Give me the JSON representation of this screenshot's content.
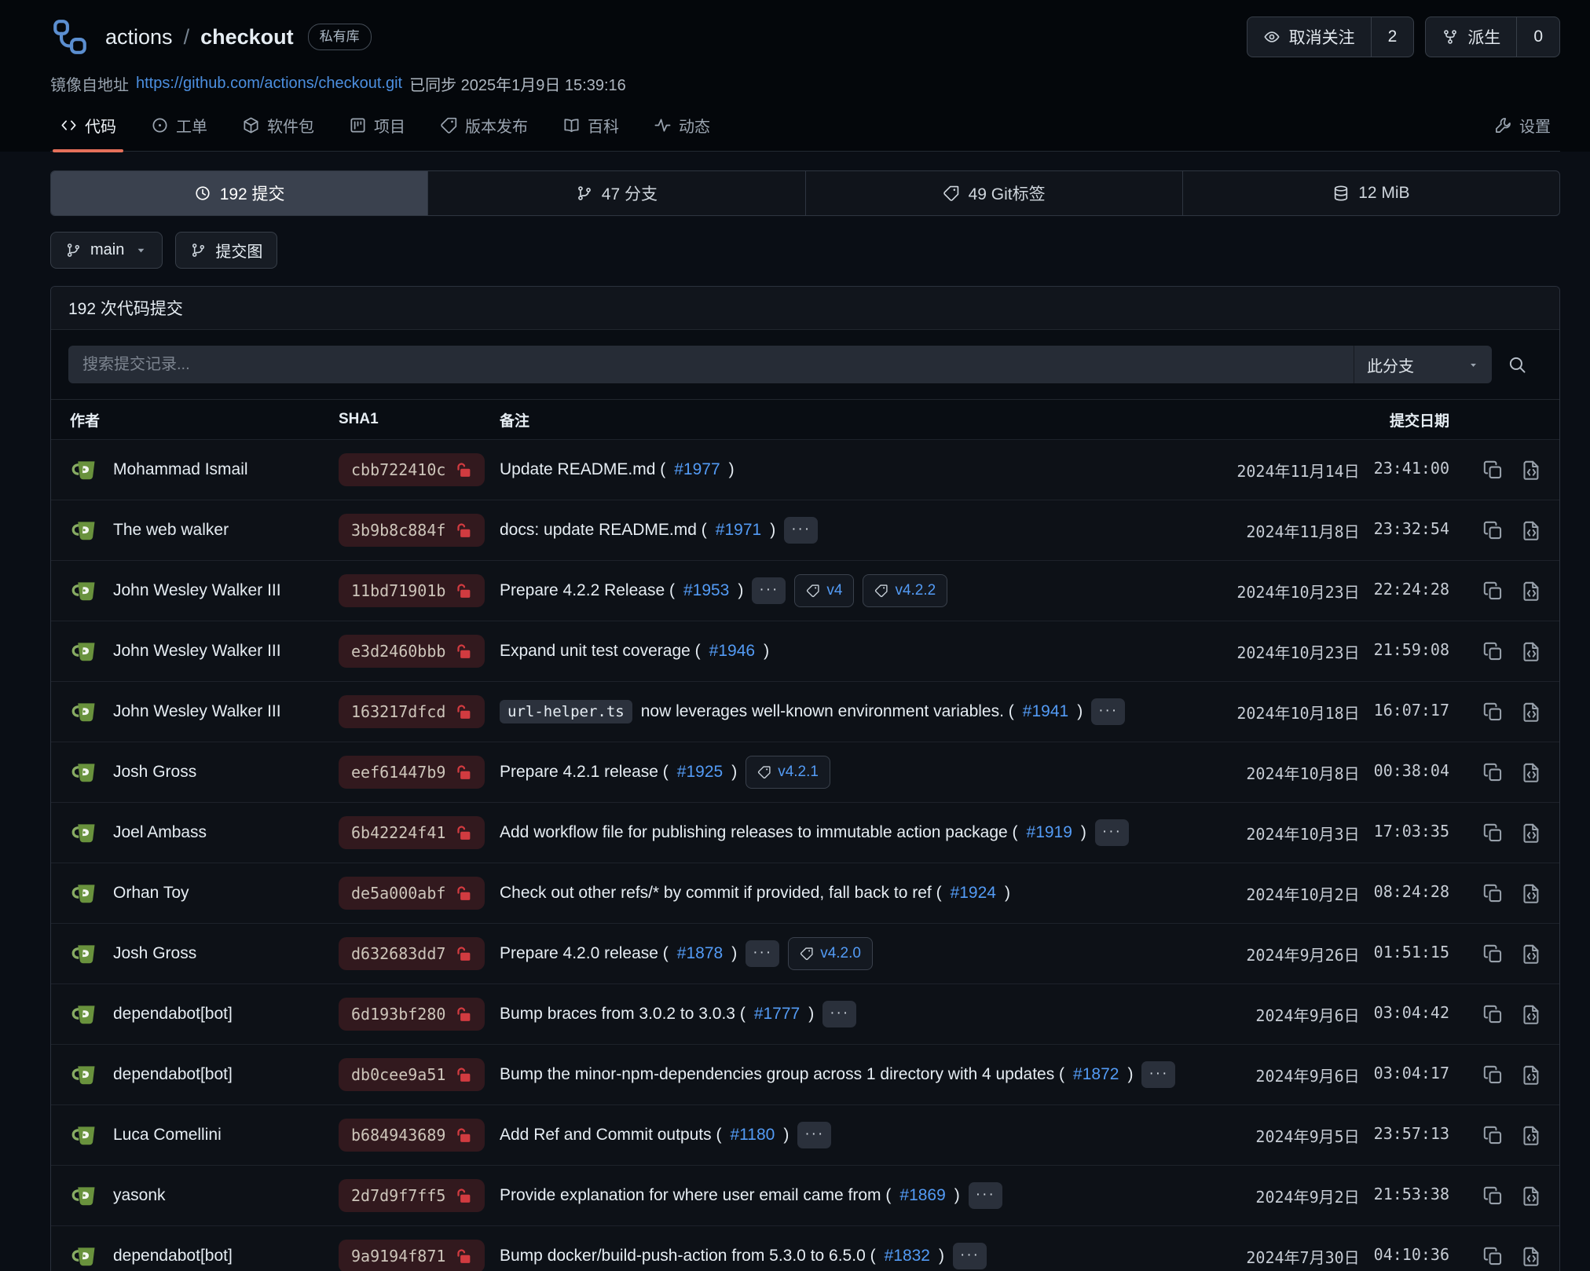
{
  "colors": {
    "tab_underline_accent": "#e5705a",
    "link_blue": "#539bf5",
    "mirror_link_blue": "#4c8fe0",
    "sha_pill_bg": "#32191e",
    "lock_red": "#d13b40",
    "avatar_green": "#69923d",
    "logo_blue": "#5b8ed0"
  },
  "header": {
    "logo_icon": "branch-network-logo-icon",
    "owner": "actions",
    "separator": "/",
    "repo": "checkout",
    "visibility_badge": "私有库",
    "actions": {
      "unwatch": {
        "icon": "eye-icon",
        "label": "取消关注",
        "count": "2"
      },
      "fork": {
        "icon": "fork-icon",
        "label": "派生",
        "count": "0"
      }
    },
    "mirror": {
      "label": "镜像自地址",
      "url": "https://github.com/actions/checkout.git",
      "synced": "已同步 2025年1月9日 15:39:16"
    }
  },
  "tabs": [
    {
      "id": "code",
      "icon": "code-icon",
      "label": "代码",
      "active": true
    },
    {
      "id": "issues",
      "icon": "issue-icon",
      "label": "工单",
      "active": false
    },
    {
      "id": "packages",
      "icon": "package-icon",
      "label": "软件包",
      "active": false
    },
    {
      "id": "projects",
      "icon": "project-icon",
      "label": "项目",
      "active": false
    },
    {
      "id": "releases",
      "icon": "tag-icon",
      "label": "版本发布",
      "active": false
    },
    {
      "id": "wiki",
      "icon": "book-icon",
      "label": "百科",
      "active": false
    },
    {
      "id": "activity",
      "icon": "activity-icon",
      "label": "动态",
      "active": false
    }
  ],
  "settings_tab": {
    "id": "settings",
    "icon": "wrench-icon",
    "label": "设置"
  },
  "stats": [
    {
      "id": "commits",
      "icon": "clock-icon",
      "label": "192 提交",
      "active": true
    },
    {
      "id": "branches",
      "icon": "branch-icon",
      "label": "47 分支",
      "active": false
    },
    {
      "id": "git-tags",
      "icon": "tag-icon",
      "label": "49 Git标签",
      "active": false
    },
    {
      "id": "repo-size",
      "icon": "database-icon",
      "label": "12 MiB",
      "active": false
    }
  ],
  "toolbar": {
    "branch_button": {
      "icon": "branch-icon",
      "label": "main",
      "caret_icon": "caret-down-icon"
    },
    "graph_button": {
      "icon": "branch-icon",
      "label": "提交图"
    }
  },
  "panel": {
    "title": "192 次代码提交",
    "search_placeholder": "搜索提交记录...",
    "branch_filter": "此分支",
    "search_icon": "search-icon"
  },
  "table_headers": {
    "author": "作者",
    "sha": "SHA1",
    "message": "备注",
    "date": "提交日期"
  },
  "ui": {
    "more_label": "···"
  },
  "commits": [
    {
      "author": "Mohammad Ismail",
      "sha": "cbb722410c",
      "code": "",
      "msg_pre": "Update README.md (",
      "link": "#1977",
      "msg_post": ")",
      "more": false,
      "tags": [],
      "date": "2024年11月14日",
      "time": "23:41:00"
    },
    {
      "author": "The web walker",
      "sha": "3b9b8c884f",
      "code": "",
      "msg_pre": "docs: update README.md (",
      "link": "#1971",
      "msg_post": ")",
      "more": true,
      "tags": [],
      "date": "2024年11月8日",
      "time": "23:32:54"
    },
    {
      "author": "John Wesley Walker III",
      "sha": "11bd71901b",
      "code": "",
      "msg_pre": "Prepare 4.2.2 Release (",
      "link": "#1953",
      "msg_post": ")",
      "more": true,
      "tags": [
        "v4",
        "v4.2.2"
      ],
      "date": "2024年10月23日",
      "time": "22:24:28"
    },
    {
      "author": "John Wesley Walker III",
      "sha": "e3d2460bbb",
      "code": "",
      "msg_pre": "Expand unit test coverage (",
      "link": "#1946",
      "msg_post": ")",
      "more": false,
      "tags": [],
      "date": "2024年10月23日",
      "time": "21:59:08"
    },
    {
      "author": "John Wesley Walker III",
      "sha": "163217dfcd",
      "code": "url-helper.ts",
      "msg_pre": " now leverages well-known environment variables. (",
      "link": "#1941",
      "msg_post": ")",
      "more": true,
      "tags": [],
      "date": "2024年10月18日",
      "time": "16:07:17"
    },
    {
      "author": "Josh Gross",
      "sha": "eef61447b9",
      "code": "",
      "msg_pre": "Prepare 4.2.1 release (",
      "link": "#1925",
      "msg_post": ")",
      "more": false,
      "tags": [
        "v4.2.1"
      ],
      "date": "2024年10月8日",
      "time": "00:38:04"
    },
    {
      "author": "Joel Ambass",
      "sha": "6b42224f41",
      "code": "",
      "msg_pre": "Add workflow file for publishing releases to immutable action package (",
      "link": "#1919",
      "msg_post": ")",
      "more": true,
      "tags": [],
      "date": "2024年10月3日",
      "time": "17:03:35"
    },
    {
      "author": "Orhan Toy",
      "sha": "de5a000abf",
      "code": "",
      "msg_pre": "Check out other refs/* by commit if provided, fall back to ref (",
      "link": "#1924",
      "msg_post": ")",
      "more": false,
      "tags": [],
      "date": "2024年10月2日",
      "time": "08:24:28"
    },
    {
      "author": "Josh Gross",
      "sha": "d632683dd7",
      "code": "",
      "msg_pre": "Prepare 4.2.0 release (",
      "link": "#1878",
      "msg_post": ")",
      "more": true,
      "tags": [
        "v4.2.0"
      ],
      "date": "2024年9月26日",
      "time": "01:51:15"
    },
    {
      "author": "dependabot[bot]",
      "sha": "6d193bf280",
      "code": "",
      "msg_pre": "Bump braces from 3.0.2 to 3.0.3 (",
      "link": "#1777",
      "msg_post": ")",
      "more": true,
      "tags": [],
      "date": "2024年9月6日",
      "time": "03:04:42"
    },
    {
      "author": "dependabot[bot]",
      "sha": "db0cee9a51",
      "code": "",
      "msg_pre": "Bump the minor-npm-dependencies group across 1 directory with 4 updates (",
      "link": "#1872",
      "msg_post": ")",
      "more": true,
      "tags": [],
      "date": "2024年9月6日",
      "time": "03:04:17"
    },
    {
      "author": "Luca Comellini",
      "sha": "b684943689",
      "code": "",
      "msg_pre": "Add Ref and Commit outputs (",
      "link": "#1180",
      "msg_post": ")",
      "more": true,
      "tags": [],
      "date": "2024年9月5日",
      "time": "23:57:13"
    },
    {
      "author": "yasonk",
      "sha": "2d7d9f7ff5",
      "code": "",
      "msg_pre": "Provide explanation for where user email came from (",
      "link": "#1869",
      "msg_post": ")",
      "more": true,
      "tags": [],
      "date": "2024年9月2日",
      "time": "21:53:38"
    },
    {
      "author": "dependabot[bot]",
      "sha": "9a9194f871",
      "code": "",
      "msg_pre": "Bump docker/build-push-action from 5.3.0 to 6.5.0 (",
      "link": "#1832",
      "msg_post": ")",
      "more": true,
      "tags": [],
      "date": "2024年7月30日",
      "time": "04:10:36"
    }
  ]
}
